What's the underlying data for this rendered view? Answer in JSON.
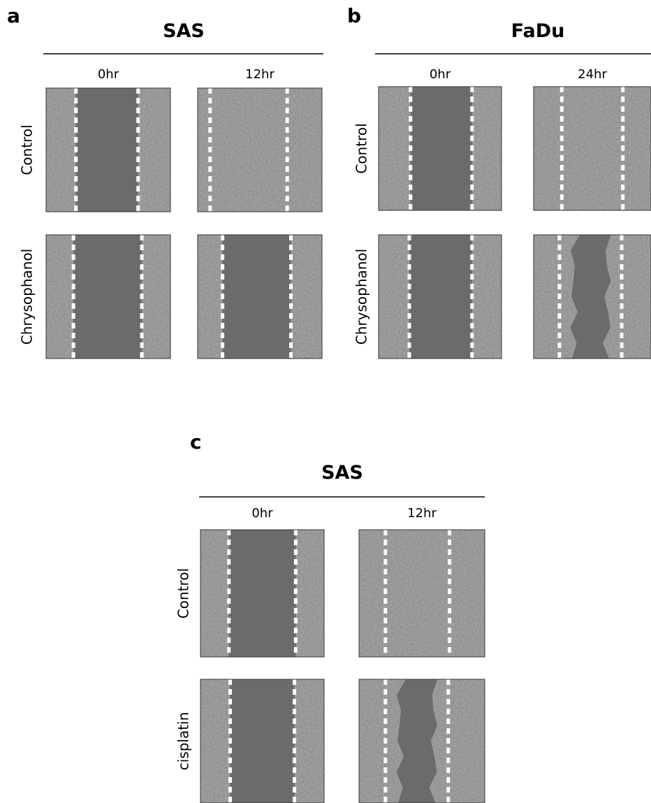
{
  "panels": [
    {
      "label": "a",
      "title": "SAS",
      "columns": [
        "0hr",
        "12hr"
      ],
      "rows": [
        "Control",
        "Chrysophanol"
      ]
    },
    {
      "label": "b",
      "title": "FaDu",
      "columns": [
        "0hr",
        "24hr"
      ],
      "rows": [
        "Control",
        "Chrysophanol"
      ]
    },
    {
      "label": "c",
      "title": "SAS",
      "columns": [
        "0hr",
        "12hr"
      ],
      "rows": [
        "Control",
        "cisplatin"
      ]
    }
  ]
}
